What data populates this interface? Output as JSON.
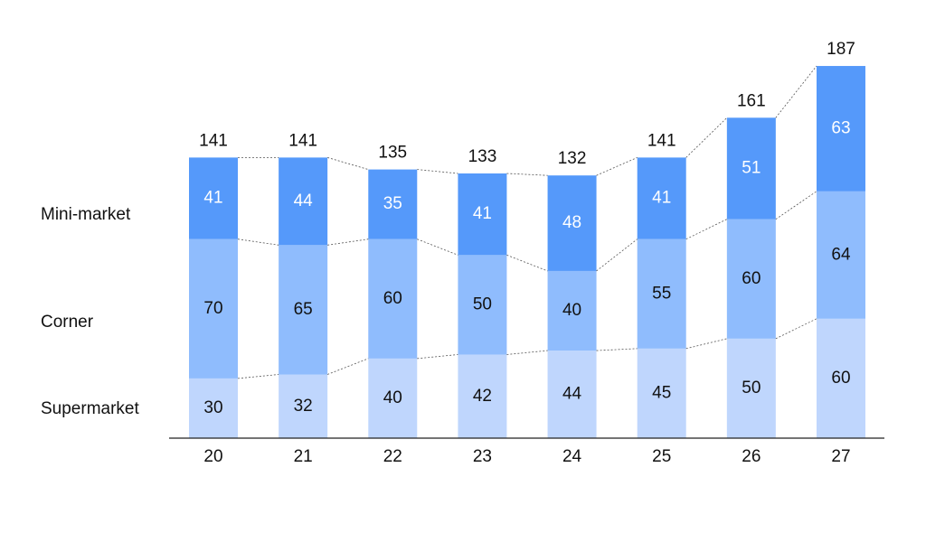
{
  "chart_data": {
    "type": "stacked-bar",
    "categories": [
      "20",
      "21",
      "22",
      "23",
      "24",
      "25",
      "26",
      "27"
    ],
    "series": [
      {
        "name": "Supermarket",
        "color": "#bfd6fd",
        "label_color": "#111111",
        "values": [
          30,
          32,
          40,
          42,
          44,
          45,
          50,
          60
        ]
      },
      {
        "name": "Corner",
        "color": "#8fbcfd",
        "label_color": "#111111",
        "values": [
          70,
          65,
          60,
          50,
          40,
          55,
          60,
          64
        ]
      },
      {
        "name": "Mini-market",
        "color": "#5599fa",
        "label_color": "#ffffff",
        "values": [
          41,
          44,
          35,
          41,
          48,
          41,
          51,
          63
        ]
      }
    ],
    "totals": [
      141,
      141,
      135,
      133,
      132,
      141,
      161,
      187
    ]
  }
}
